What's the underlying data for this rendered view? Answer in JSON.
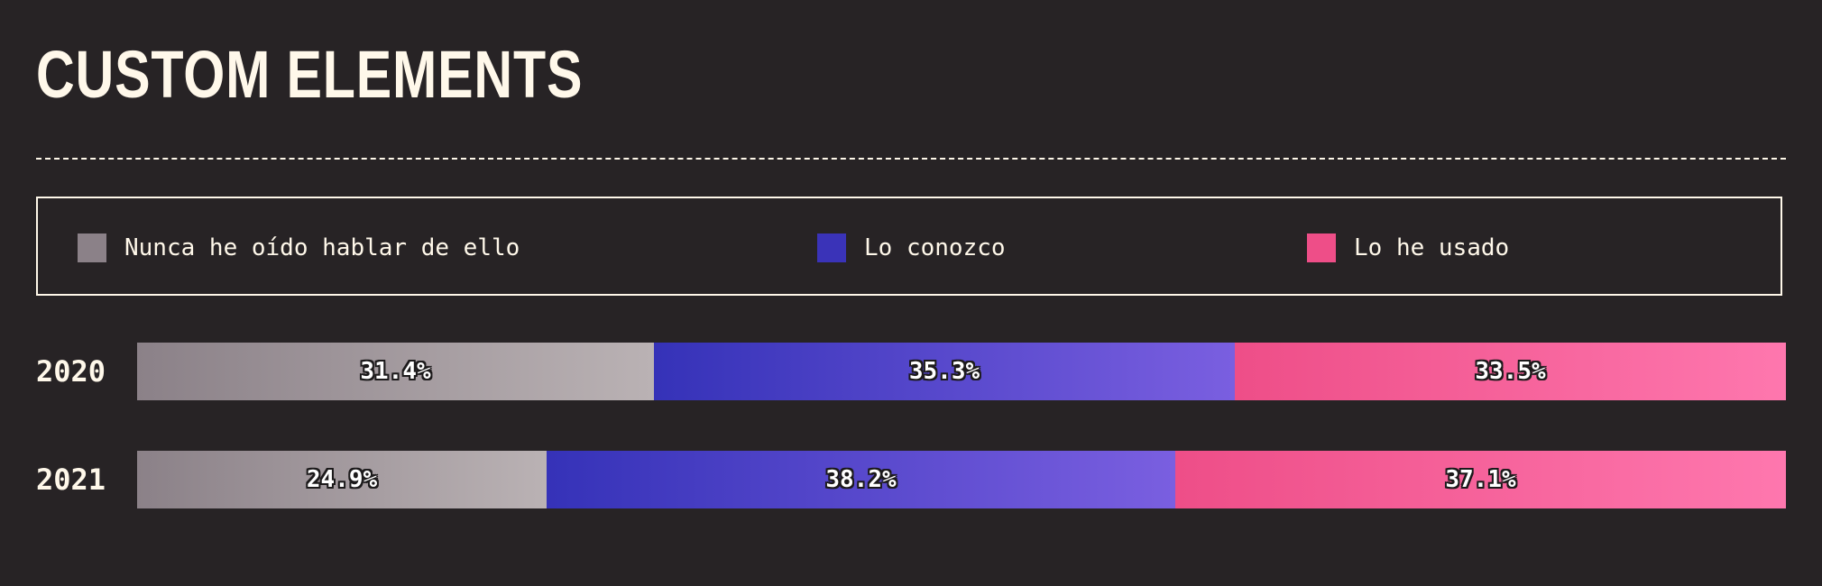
{
  "chart_data": {
    "type": "bar",
    "stacked": true,
    "orientation": "horizontal",
    "title": "CUSTOM ELEMENTS",
    "categories": [
      "2020",
      "2021"
    ],
    "series": [
      {
        "name": "Nunca he oído hablar de ello",
        "values": [
          31.4,
          24.9
        ],
        "labels": [
          "31.4%",
          "24.9%"
        ],
        "color": "#8b8188"
      },
      {
        "name": "Lo conozco",
        "values": [
          35.3,
          38.2
        ],
        "labels": [
          "35.3%",
          "38.2%"
        ],
        "color": "#3a33b8"
      },
      {
        "name": "Lo he usado",
        "values": [
          33.5,
          37.1
        ],
        "labels": [
          "33.5%",
          "37.1%"
        ],
        "color": "#ee4e88"
      }
    ],
    "legend_position": "top"
  },
  "colors": {
    "background": "#272325",
    "text": "#fff8ea"
  }
}
